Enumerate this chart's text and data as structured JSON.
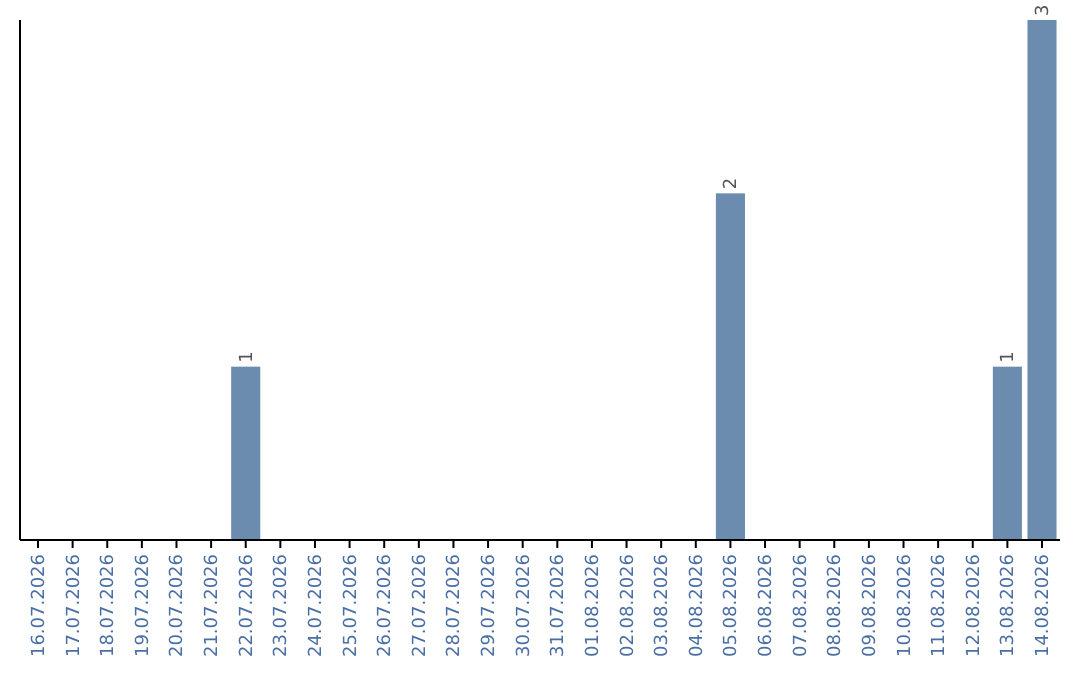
{
  "chart_data": {
    "type": "bar",
    "categories": [
      "16.07.2026",
      "17.07.2026",
      "18.07.2026",
      "19.07.2026",
      "20.07.2026",
      "21.07.2026",
      "22.07.2026",
      "23.07.2026",
      "24.07.2026",
      "25.07.2026",
      "26.07.2026",
      "27.07.2026",
      "28.07.2026",
      "29.07.2026",
      "30.07.2026",
      "31.07.2026",
      "01.08.2026",
      "02.08.2026",
      "03.08.2026",
      "04.08.2026",
      "05.08.2026",
      "06.08.2026",
      "07.08.2026",
      "08.08.2026",
      "09.08.2026",
      "10.08.2026",
      "11.08.2026",
      "12.08.2026",
      "13.08.2026",
      "14.08.2026"
    ],
    "values": [
      0,
      0,
      0,
      0,
      0,
      0,
      1,
      0,
      0,
      0,
      0,
      0,
      0,
      0,
      0,
      0,
      0,
      0,
      0,
      0,
      2,
      0,
      0,
      0,
      0,
      0,
      0,
      0,
      1,
      3
    ],
    "value_labels": [
      null,
      null,
      null,
      null,
      null,
      null,
      "1",
      null,
      null,
      null,
      null,
      null,
      null,
      null,
      null,
      null,
      null,
      null,
      null,
      null,
      "2",
      null,
      null,
      null,
      null,
      null,
      null,
      null,
      "1",
      "3"
    ],
    "color": "#6b8cae"
  }
}
